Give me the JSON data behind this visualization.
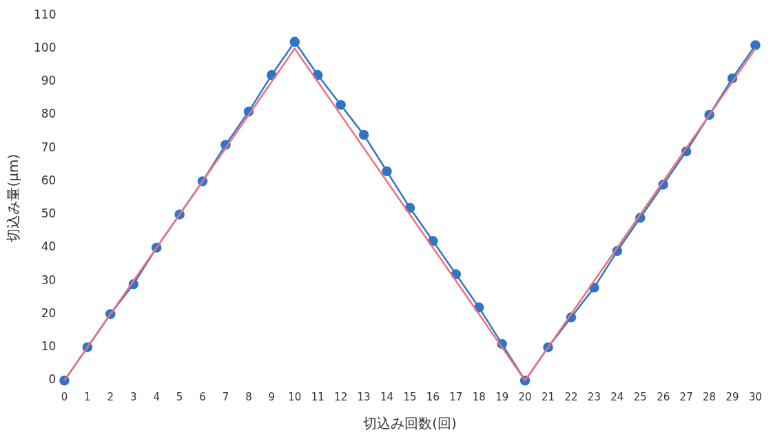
{
  "chart_data": {
    "type": "line",
    "xlabel": "切込み回数(回)",
    "ylabel": "切込み量(μm)",
    "x": [
      0,
      1,
      2,
      3,
      4,
      5,
      6,
      7,
      8,
      9,
      10,
      11,
      12,
      13,
      14,
      15,
      16,
      17,
      18,
      19,
      20,
      21,
      22,
      23,
      24,
      25,
      26,
      27,
      28,
      29,
      30
    ],
    "xlim": [
      0,
      30
    ],
    "xticks": [
      0,
      1,
      2,
      3,
      4,
      5,
      6,
      7,
      8,
      9,
      10,
      11,
      12,
      13,
      14,
      15,
      16,
      17,
      18,
      19,
      20,
      21,
      22,
      23,
      24,
      25,
      26,
      27,
      28,
      29,
      30
    ],
    "ylim": [
      0,
      110
    ],
    "yticks": [
      0,
      10,
      20,
      30,
      40,
      50,
      60,
      70,
      80,
      90,
      100,
      110
    ],
    "grid": false,
    "legend": false,
    "series": [
      {
        "color": "#f0707a",
        "marker": "none",
        "values": [
          0,
          10,
          20,
          30,
          40,
          50,
          60,
          70,
          80,
          90,
          100,
          90,
          80,
          70,
          60,
          50,
          40,
          30,
          20,
          10,
          0,
          10,
          20,
          30,
          40,
          50,
          60,
          70,
          80,
          90,
          100
        ]
      },
      {
        "color": "#2e75c8",
        "marker": "circle",
        "values": [
          0,
          10,
          20,
          29,
          40,
          50,
          60,
          71,
          81,
          92,
          102,
          92,
          83,
          74,
          63,
          52,
          42,
          32,
          22,
          11,
          0,
          10,
          19,
          28,
          39,
          49,
          59,
          69,
          80,
          91,
          101
        ]
      }
    ]
  }
}
